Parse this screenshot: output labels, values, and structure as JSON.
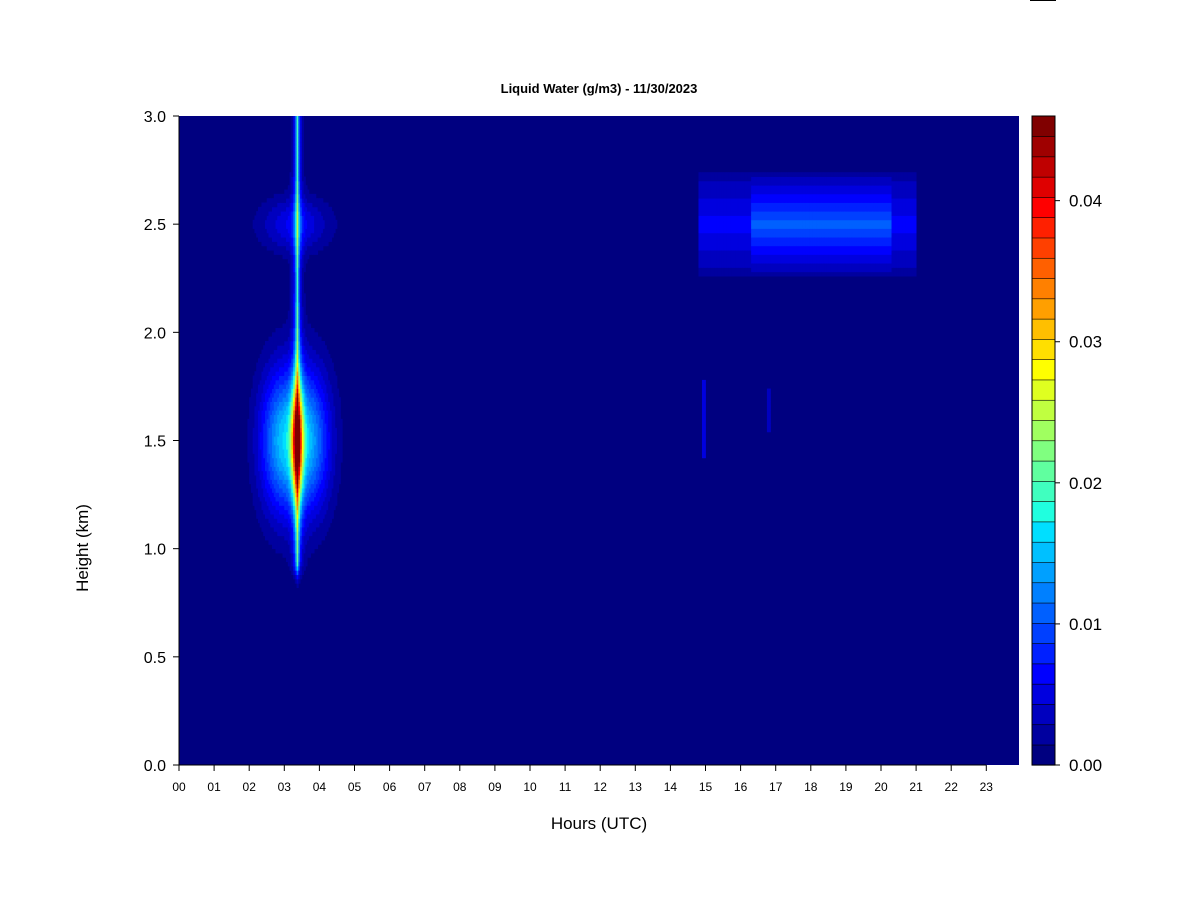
{
  "chart_data": {
    "type": "heatmap",
    "title": "Liquid Water (g/m3) - 11/30/2023",
    "xlabel": "Hours (UTC)",
    "ylabel": "Height (km)",
    "x_ticks": [
      "00",
      "01",
      "02",
      "03",
      "04",
      "05",
      "06",
      "07",
      "08",
      "09",
      "10",
      "11",
      "12",
      "13",
      "14",
      "15",
      "16",
      "17",
      "18",
      "19",
      "20",
      "21",
      "22",
      "23"
    ],
    "y_ticks": [
      "0.0",
      "0.5",
      "1.0",
      "1.5",
      "2.0",
      "2.5",
      "3.0"
    ],
    "xlim": [
      0,
      24
    ],
    "ylim": [
      0,
      3.0
    ],
    "colorbar": {
      "range": [
        0,
        0.046
      ],
      "ticks": [
        "0.00",
        "0.01",
        "0.02",
        "0.03",
        "0.04"
      ],
      "tick_values": [
        0,
        0.01,
        0.02,
        0.03,
        0.04
      ],
      "levels": 23,
      "colors": [
        "#000080",
        "#00009F",
        "#0000BF",
        "#0000DF",
        "#0000FF",
        "#0020FF",
        "#0040FF",
        "#0060FF",
        "#0080FF",
        "#00A0FF",
        "#00C0FF",
        "#00DFFF",
        "#20FFDF",
        "#40FFBF",
        "#60FF9F",
        "#80FF80",
        "#A0FF60",
        "#C0FF40",
        "#DFFF20",
        "#FFFF00",
        "#FFDF00",
        "#FFBF00",
        "#FF9F00",
        "#FF8000",
        "#FF6000",
        "#FF4000",
        "#FF2000",
        "#FF0000",
        "#DF0000",
        "#BF0000",
        "#9F0000",
        "#800000"
      ]
    },
    "features": [
      {
        "label": "cloud column",
        "hours": [
          2.5,
          4.6
        ],
        "height_km": [
          0.9,
          3.0
        ],
        "peak_hour": 3.4,
        "peak_height_km": 1.5,
        "peak_value": 0.04
      },
      {
        "label": "upper layer",
        "hours": [
          14.8,
          21.0
        ],
        "height_km": [
          2.3,
          2.7
        ],
        "peak_value": 0.009
      },
      {
        "label": "trace",
        "hours": [
          14.9,
          15.0
        ],
        "height_km": [
          1.4,
          1.8
        ],
        "peak_value": 0.005
      }
    ]
  }
}
